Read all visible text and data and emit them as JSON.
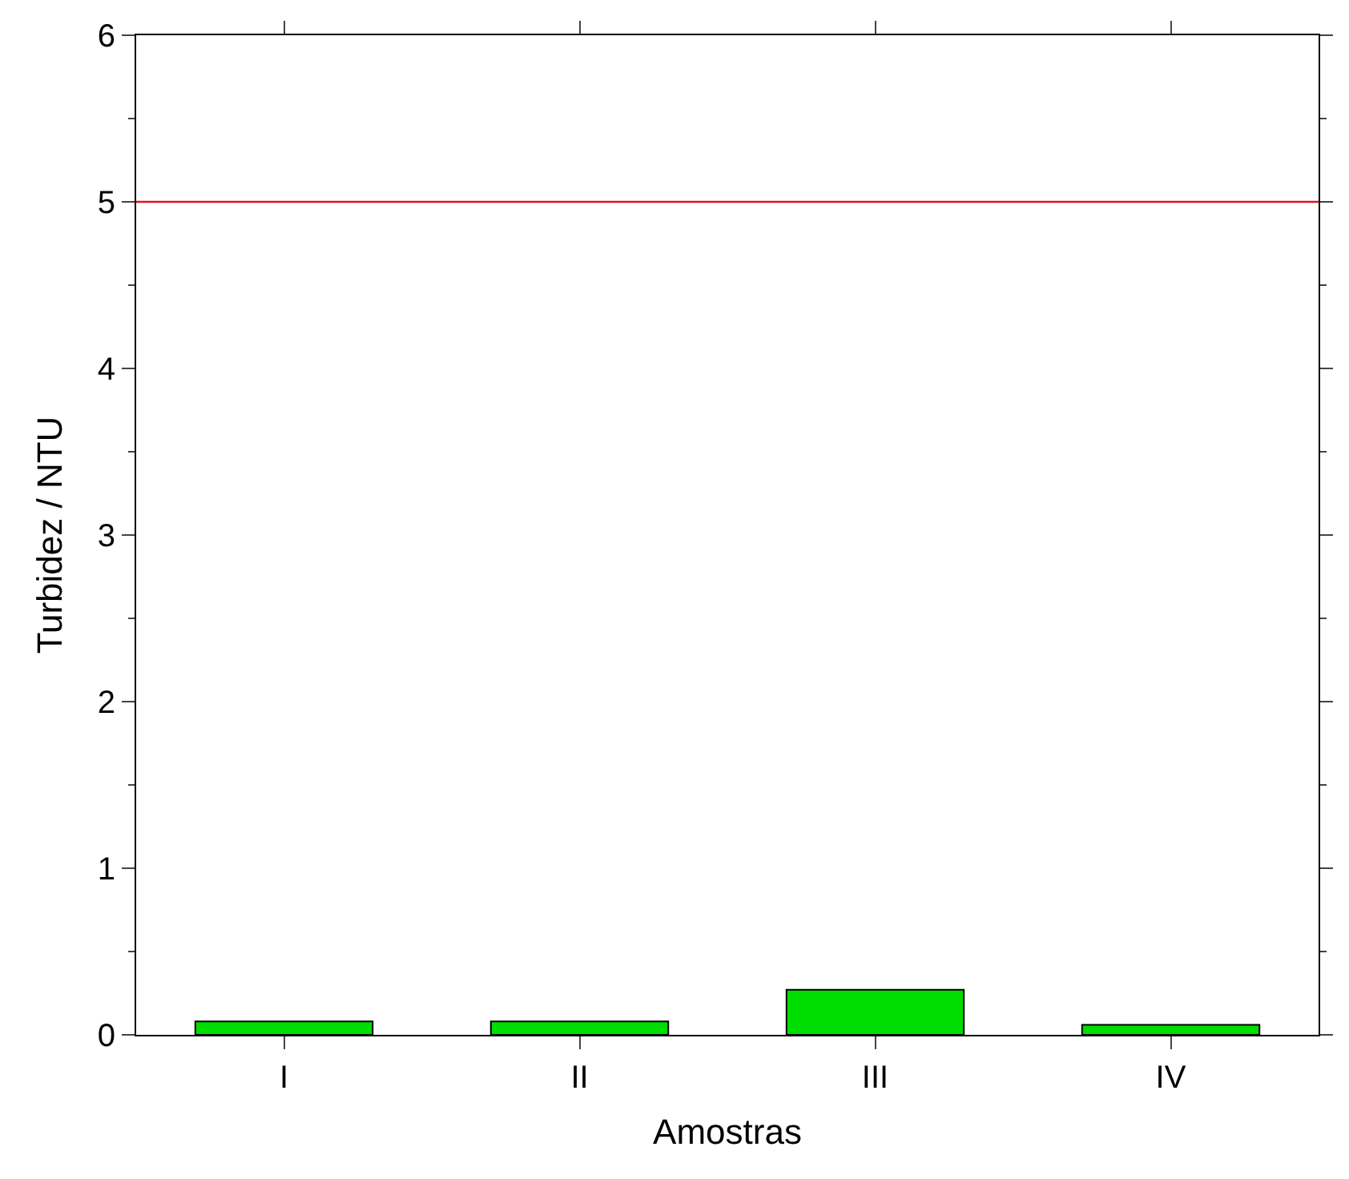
{
  "chart_data": {
    "type": "bar",
    "xlabel": "Amostras",
    "ylabel": "Turbidez / NTU",
    "categories": [
      "I",
      "II",
      "III",
      "IV"
    ],
    "values": [
      0.08,
      0.08,
      0.27,
      0.06
    ],
    "color": "#00dd00",
    "ylim": [
      0,
      6
    ],
    "yticks": [
      0,
      1,
      2,
      3,
      4,
      5,
      6
    ],
    "ref_lines": [
      {
        "axis": "y",
        "value": 5,
        "color": "#e0141e"
      }
    ]
  }
}
